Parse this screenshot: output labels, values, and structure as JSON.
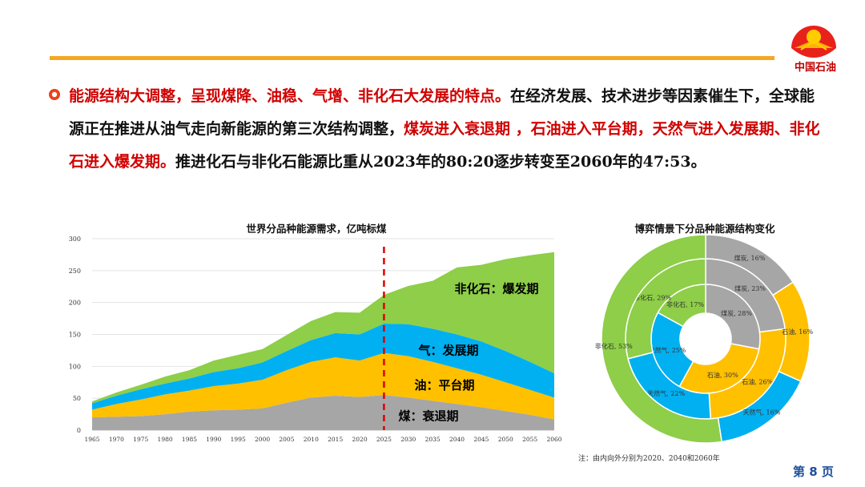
{
  "header": {
    "logo_text": "中国石油",
    "accent_color": "#f5a623",
    "brand_color": "#c00000"
  },
  "paragraph": {
    "segments": [
      {
        "text": "能源结构大调整，呈现煤降、油稳、气增、非化石大发展的特点。",
        "style": "red"
      },
      {
        "text": "在经济发展、技术进步等因素催生下，全球能源正在推进从油气走向新能源的第三次结构调整，",
        "style": "plain"
      },
      {
        "text": "煤炭进入衰退期 ，石油进入平台期，天然气进入发展期、非化石进入爆发期。",
        "style": "red"
      },
      {
        "text": "推进化石与非化石能源比重从2023年的80:20逐步转变至2060年的47:53。",
        "style": "plain"
      }
    ]
  },
  "footer": {
    "note": "注：由内向外分别为2020、2040和2060年",
    "page_label": "第 8 页"
  },
  "chart_data": [
    {
      "type": "area",
      "stacked": true,
      "title": "世界分品种能源需求，亿吨标煤",
      "x": [
        1965,
        1970,
        1975,
        1980,
        1985,
        1990,
        1995,
        2000,
        2005,
        2010,
        2015,
        2020,
        2025,
        2030,
        2035,
        2040,
        2045,
        2050,
        2055,
        2060
      ],
      "ylim": [
        0,
        300
      ],
      "yticks": [
        0,
        50,
        100,
        150,
        200,
        250,
        300
      ],
      "grid": true,
      "divider_x": 2025,
      "series": [
        {
          "key": "coal",
          "color": "#a6a6a6",
          "values": [
            20,
            21,
            22,
            25,
            29,
            31,
            32,
            34,
            43,
            51,
            54,
            52,
            55,
            51,
            46,
            41,
            36,
            30,
            24,
            17
          ]
        },
        {
          "key": "oil",
          "color": "#ffc000",
          "values": [
            12,
            20,
            26,
            31,
            33,
            38,
            41,
            45,
            51,
            56,
            60,
            57,
            66,
            65,
            61,
            56,
            51,
            45,
            39,
            34
          ]
        },
        {
          "key": "gas",
          "color": "#00b0f0",
          "values": [
            10,
            13,
            16,
            17,
            19,
            22,
            24,
            27,
            30,
            34,
            38,
            41,
            46,
            50,
            52,
            53,
            52,
            49,
            44,
            38
          ]
        },
        {
          "key": "nonfossil",
          "color": "#8ece48",
          "values": [
            3,
            5,
            7,
            11,
            13,
            18,
            21,
            21,
            25,
            30,
            33,
            34,
            45,
            60,
            75,
            105,
            120,
            144,
            167,
            190
          ]
        }
      ],
      "annotations": [
        {
          "series": "nonfossil",
          "text": "非化石：爆发期"
        },
        {
          "series": "gas",
          "text": "气：发展期"
        },
        {
          "series": "oil",
          "text": "油：平台期"
        },
        {
          "series": "coal",
          "text": "煤：衰退期"
        }
      ]
    },
    {
      "type": "pie",
      "subtype": "multi-ring donut",
      "title": "博弈情景下分品种能源结构变化",
      "rings": [
        {
          "year": "2020",
          "slices": [
            {
              "name": "煤炭",
              "value": 28,
              "label": "煤炭, 28%",
              "color": "#a6a6a6"
            },
            {
              "name": "石油",
              "value": 30,
              "label": "石油, 30%",
              "color": "#ffc000"
            },
            {
              "name": "天然气",
              "value": 25,
              "label": "天然气, 25%",
              "color": "#00b0f0"
            },
            {
              "name": "非化石",
              "value": 17,
              "label": "非化石, 17%",
              "color": "#8ece48"
            }
          ]
        },
        {
          "year": "2040",
          "slices": [
            {
              "name": "煤炭",
              "value": 23,
              "label": "煤炭, 23%",
              "color": "#a6a6a6"
            },
            {
              "name": "石油",
              "value": 26,
              "label": "石油, 26%",
              "color": "#ffc000"
            },
            {
              "name": "天然气",
              "value": 22,
              "label": "天然气, 22%",
              "color": "#00b0f0"
            },
            {
              "name": "非化石",
              "value": 29,
              "label": "非化石, 29%",
              "color": "#8ece48"
            }
          ]
        },
        {
          "year": "2060",
          "slices": [
            {
              "name": "煤炭",
              "value": 16,
              "label": "煤炭, 16%",
              "color": "#a6a6a6"
            },
            {
              "name": "石油",
              "value": 16,
              "label": "石油, 16%",
              "color": "#ffc000"
            },
            {
              "name": "天然气",
              "value": 16,
              "label": "天然气, 16%",
              "color": "#00b0f0"
            },
            {
              "name": "非化石",
              "value": 53,
              "label": "非化石, 53%",
              "color": "#8ece48"
            }
          ]
        }
      ]
    }
  ]
}
